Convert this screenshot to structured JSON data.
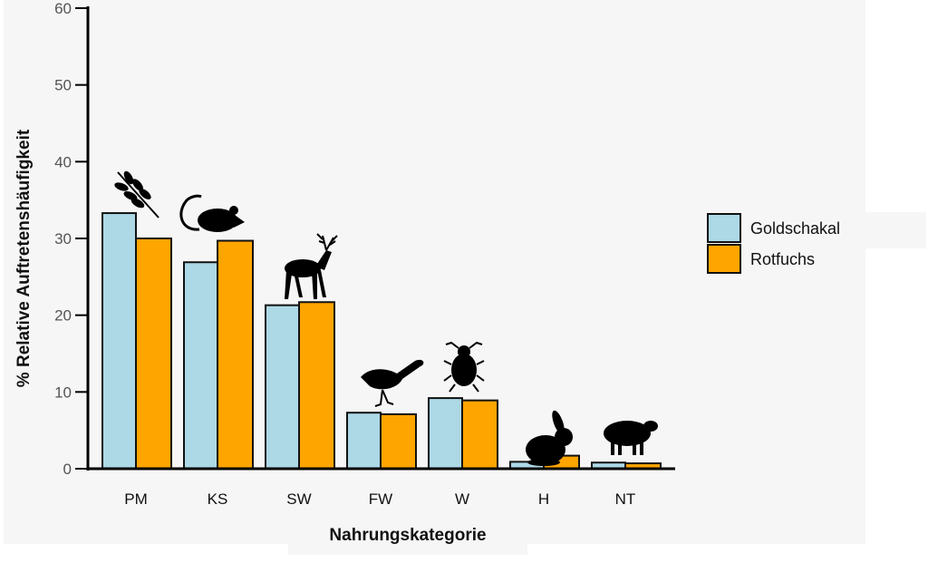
{
  "chart_data": {
    "type": "bar",
    "xlabel": "Nahrungskategorie",
    "ylabel": "% Relative Auftretenshäufigkeit",
    "ylim": [
      0,
      60
    ],
    "yticks": [
      "0",
      "10",
      "20",
      "30",
      "40",
      "50",
      "60"
    ],
    "categories": [
      "PM",
      "KS",
      "SW",
      "FW",
      "W",
      "H",
      "NT"
    ],
    "category_icons": [
      "leaf-branch-icon",
      "mouse-icon",
      "deer-icon",
      "bird-icon",
      "beetle-icon",
      "rabbit-icon",
      "sheep-icon"
    ],
    "series": [
      {
        "name": "Goldschakal",
        "color": "#add8e6",
        "values": [
          33.3,
          26.9,
          21.3,
          7.3,
          9.2,
          0.9,
          0.8
        ]
      },
      {
        "name": "Rotfuchs",
        "color": "#ffa500",
        "values": [
          30.0,
          29.7,
          21.7,
          7.1,
          8.9,
          1.7,
          0.7
        ]
      }
    ],
    "grid": false,
    "legend_position": "right"
  }
}
